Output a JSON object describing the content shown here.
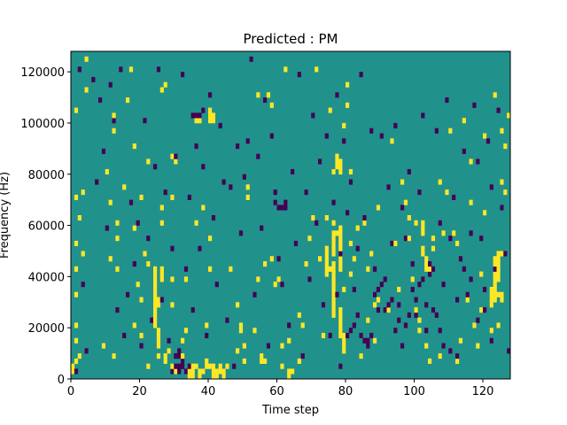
{
  "chart_data": {
    "type": "heatmap",
    "title": "Predicted : PM",
    "xlabel": "Time step",
    "ylabel": "Frequency (Hz)",
    "xlim": [
      0,
      128
    ],
    "ylim": [
      0,
      128000
    ],
    "xticks": [
      0,
      20,
      40,
      60,
      80,
      100,
      120
    ],
    "yticks": [
      0,
      20000,
      40000,
      60000,
      80000,
      100000,
      120000
    ],
    "grid": {
      "cols": 128,
      "rows": 64,
      "cell_hz": 2000
    },
    "colors": {
      "low": "#440154",
      "mid": "#21918c",
      "high": "#fde725"
    },
    "background_value": 0,
    "high_cells": [
      [
        0,
        1
      ],
      [
        0,
        2
      ],
      [
        1,
        3
      ],
      [
        1,
        7
      ],
      [
        1,
        10
      ],
      [
        1,
        16
      ],
      [
        1,
        21
      ],
      [
        1,
        26
      ],
      [
        1,
        35
      ],
      [
        1,
        52
      ],
      [
        2,
        4
      ],
      [
        2,
        31
      ],
      [
        3,
        18
      ],
      [
        3,
        24
      ],
      [
        3,
        36
      ],
      [
        4,
        56
      ],
      [
        4,
        62
      ],
      [
        9,
        6
      ],
      [
        10,
        40
      ],
      [
        11,
        23
      ],
      [
        11,
        34
      ],
      [
        12,
        4
      ],
      [
        12,
        48
      ],
      [
        12,
        51
      ],
      [
        13,
        21
      ],
      [
        13,
        27
      ],
      [
        13,
        30
      ],
      [
        15,
        37
      ],
      [
        16,
        54
      ],
      [
        17,
        60
      ],
      [
        18,
        45
      ],
      [
        18,
        29
      ],
      [
        18,
        10
      ],
      [
        19,
        18
      ],
      [
        20,
        8
      ],
      [
        20,
        15
      ],
      [
        20,
        35
      ],
      [
        21,
        24
      ],
      [
        22,
        2
      ],
      [
        22,
        22
      ],
      [
        22,
        42
      ],
      [
        25,
        4
      ],
      [
        25,
        8
      ],
      [
        26,
        30
      ],
      [
        26,
        33
      ],
      [
        26,
        56
      ],
      [
        27,
        57
      ],
      [
        28,
        5
      ],
      [
        29,
        14
      ],
      [
        29,
        19
      ],
      [
        29,
        35
      ],
      [
        29,
        43
      ],
      [
        30,
        42
      ],
      [
        32,
        4
      ],
      [
        32,
        7
      ],
      [
        33,
        9
      ],
      [
        33,
        19
      ],
      [
        34,
        2
      ],
      [
        35,
        2
      ],
      [
        36,
        2
      ],
      [
        36,
        30
      ],
      [
        36,
        50
      ],
      [
        37,
        50
      ],
      [
        38,
        1
      ],
      [
        38,
        33
      ],
      [
        39,
        2
      ],
      [
        39,
        3
      ],
      [
        39,
        10
      ],
      [
        40,
        2
      ],
      [
        40,
        21
      ],
      [
        40,
        27
      ],
      [
        45,
        2
      ],
      [
        46,
        21
      ],
      [
        48,
        5
      ],
      [
        48,
        14
      ],
      [
        49,
        9
      ],
      [
        49,
        10
      ],
      [
        50,
        3
      ],
      [
        50,
        6
      ],
      [
        51,
        35
      ],
      [
        51,
        37
      ],
      [
        53,
        9
      ],
      [
        54,
        19
      ],
      [
        54,
        55
      ],
      [
        55,
        3
      ],
      [
        55,
        4
      ],
      [
        56,
        3
      ],
      [
        56,
        22
      ],
      [
        57,
        55
      ],
      [
        58,
        23
      ],
      [
        58,
        53
      ],
      [
        59,
        18
      ],
      [
        60,
        19
      ],
      [
        61,
        2
      ],
      [
        61,
        6
      ],
      [
        62,
        60
      ],
      [
        63,
        7
      ],
      [
        66,
        3
      ],
      [
        66,
        12
      ],
      [
        67,
        10
      ],
      [
        68,
        22
      ],
      [
        69,
        27
      ],
      [
        70,
        31
      ],
      [
        71,
        60
      ],
      [
        72,
        23
      ],
      [
        73,
        8
      ],
      [
        74,
        31
      ],
      [
        75,
        21
      ],
      [
        75,
        52
      ],
      [
        76,
        40
      ],
      [
        76,
        28
      ],
      [
        76,
        30
      ],
      [
        77,
        41
      ],
      [
        77,
        42
      ],
      [
        77,
        43
      ],
      [
        78,
        40
      ],
      [
        78,
        41
      ],
      [
        78,
        42
      ],
      [
        79,
        17
      ],
      [
        79,
        49
      ],
      [
        80,
        53
      ],
      [
        80,
        57
      ],
      [
        81,
        20
      ],
      [
        81,
        26
      ],
      [
        81,
        40
      ],
      [
        82,
        23
      ],
      [
        83,
        29
      ],
      [
        84,
        4
      ],
      [
        85,
        30
      ],
      [
        86,
        21
      ],
      [
        86,
        11
      ],
      [
        87,
        24
      ],
      [
        88,
        14
      ],
      [
        88,
        7
      ],
      [
        89,
        33
      ],
      [
        89,
        15
      ],
      [
        92,
        13
      ],
      [
        93,
        46
      ],
      [
        94,
        26
      ],
      [
        95,
        17
      ],
      [
        96,
        38
      ],
      [
        97,
        34
      ],
      [
        98,
        27
      ],
      [
        98,
        31
      ],
      [
        99,
        19
      ],
      [
        99,
        22
      ],
      [
        100,
        13
      ],
      [
        100,
        30
      ],
      [
        101,
        9
      ],
      [
        101,
        11
      ],
      [
        103,
        6
      ],
      [
        104,
        3
      ],
      [
        105,
        25
      ],
      [
        106,
        48
      ],
      [
        107,
        38
      ],
      [
        107,
        4
      ],
      [
        108,
        28
      ],
      [
        109,
        36
      ],
      [
        110,
        48
      ],
      [
        111,
        28
      ],
      [
        112,
        3
      ],
      [
        112,
        26
      ],
      [
        113,
        7
      ],
      [
        114,
        50
      ],
      [
        115,
        15
      ],
      [
        116,
        34
      ],
      [
        116,
        42
      ],
      [
        117,
        10
      ],
      [
        118,
        6
      ],
      [
        119,
        13
      ],
      [
        119,
        20
      ],
      [
        120,
        32
      ],
      [
        120,
        47
      ],
      [
        122,
        9
      ],
      [
        123,
        55
      ],
      [
        124,
        10
      ],
      [
        124,
        16
      ],
      [
        125,
        24
      ],
      [
        125,
        38
      ],
      [
        125,
        48
      ],
      [
        126,
        36
      ],
      [
        126,
        45
      ],
      [
        127,
        51
      ]
    ],
    "high_bands": [
      [
        74,
        20,
        26
      ],
      [
        76,
        12,
        23
      ],
      [
        76,
        24,
        28
      ],
      [
        77,
        28,
        29
      ],
      [
        78,
        21,
        30
      ],
      [
        78,
        8,
        14
      ],
      [
        79,
        5,
        9
      ],
      [
        24,
        10,
        22
      ],
      [
        25,
        6,
        10
      ],
      [
        25,
        14,
        16
      ],
      [
        26,
        19,
        22
      ],
      [
        27,
        3,
        5
      ],
      [
        29,
        1,
        3
      ],
      [
        30,
        1,
        2
      ],
      [
        34,
        0,
        2
      ],
      [
        35,
        0,
        2
      ],
      [
        37,
        0,
        2
      ],
      [
        41,
        0,
        3
      ],
      [
        42,
        0,
        2
      ],
      [
        43,
        1,
        3
      ],
      [
        44,
        0,
        2
      ],
      [
        102,
        28,
        31
      ],
      [
        102,
        24,
        26
      ],
      [
        103,
        21,
        24
      ],
      [
        104,
        21,
        23
      ],
      [
        105,
        27,
        28
      ],
      [
        122,
        14,
        18
      ],
      [
        123,
        15,
        24
      ],
      [
        124,
        19,
        25
      ],
      [
        125,
        15,
        17
      ],
      [
        40,
        50,
        53
      ],
      [
        41,
        50,
        52
      ],
      [
        63,
        0,
        2
      ],
      [
        64,
        1,
        2
      ]
    ],
    "low_cells": [
      [
        1,
        1
      ],
      [
        2,
        60
      ],
      [
        3,
        18
      ],
      [
        4,
        5
      ],
      [
        6,
        58
      ],
      [
        7,
        38
      ],
      [
        8,
        54
      ],
      [
        9,
        44
      ],
      [
        10,
        29
      ],
      [
        11,
        57
      ],
      [
        12,
        50
      ],
      [
        13,
        13
      ],
      [
        14,
        60
      ],
      [
        15,
        8
      ],
      [
        16,
        16
      ],
      [
        17,
        34
      ],
      [
        18,
        22
      ],
      [
        19,
        30
      ],
      [
        20,
        6
      ],
      [
        21,
        50
      ],
      [
        22,
        27
      ],
      [
        23,
        11
      ],
      [
        24,
        41
      ],
      [
        25,
        60
      ],
      [
        26,
        15
      ],
      [
        27,
        36
      ],
      [
        28,
        7
      ],
      [
        29,
        25
      ],
      [
        30,
        43
      ],
      [
        31,
        5
      ],
      [
        32,
        59
      ],
      [
        33,
        21
      ],
      [
        34,
        35
      ],
      [
        35,
        13
      ],
      [
        36,
        45
      ],
      [
        37,
        25
      ],
      [
        38,
        41
      ],
      [
        39,
        8
      ],
      [
        40,
        55
      ],
      [
        41,
        31
      ],
      [
        42,
        18
      ],
      [
        43,
        49
      ],
      [
        44,
        38
      ],
      [
        45,
        11
      ],
      [
        46,
        37
      ],
      [
        47,
        2
      ],
      [
        48,
        45
      ],
      [
        49,
        28
      ],
      [
        50,
        39
      ],
      [
        51,
        46
      ],
      [
        52,
        62
      ],
      [
        53,
        16
      ],
      [
        54,
        43
      ],
      [
        55,
        29
      ],
      [
        56,
        54
      ],
      [
        57,
        6
      ],
      [
        58,
        47
      ],
      [
        59,
        36
      ],
      [
        60,
        23
      ],
      [
        61,
        18
      ],
      [
        62,
        33
      ],
      [
        63,
        10
      ],
      [
        64,
        40
      ],
      [
        65,
        26
      ],
      [
        66,
        59
      ],
      [
        67,
        4
      ],
      [
        68,
        36
      ],
      [
        69,
        19
      ],
      [
        70,
        51
      ],
      [
        71,
        30
      ],
      [
        72,
        42
      ],
      [
        73,
        14
      ],
      [
        74,
        47
      ],
      [
        75,
        8
      ],
      [
        76,
        34
      ],
      [
        77,
        55
      ],
      [
        78,
        2
      ],
      [
        79,
        46
      ],
      [
        80,
        32
      ],
      [
        81,
        38
      ],
      [
        82,
        17
      ],
      [
        83,
        25
      ],
      [
        84,
        59
      ],
      [
        85,
        31
      ],
      [
        86,
        7
      ],
      [
        87,
        48
      ],
      [
        88,
        21
      ],
      [
        89,
        13
      ],
      [
        90,
        47
      ],
      [
        91,
        19
      ],
      [
        92,
        37
      ],
      [
        93,
        26
      ],
      [
        94,
        49
      ],
      [
        95,
        14
      ],
      [
        96,
        33
      ],
      [
        97,
        27
      ],
      [
        98,
        40
      ],
      [
        99,
        22
      ],
      [
        100,
        12
      ],
      [
        101,
        36
      ],
      [
        102,
        51
      ],
      [
        103,
        9
      ],
      [
        104,
        22
      ],
      [
        105,
        13
      ],
      [
        106,
        48
      ],
      [
        107,
        30
      ],
      [
        108,
        18
      ],
      [
        109,
        54
      ],
      [
        110,
        27
      ],
      [
        111,
        35
      ],
      [
        112,
        4
      ],
      [
        113,
        23
      ],
      [
        114,
        44
      ],
      [
        115,
        16
      ],
      [
        116,
        28
      ],
      [
        117,
        53
      ],
      [
        118,
        42
      ],
      [
        119,
        27
      ],
      [
        120,
        17
      ],
      [
        121,
        46
      ],
      [
        122,
        37
      ],
      [
        123,
        21
      ],
      [
        124,
        52
      ],
      [
        125,
        33
      ],
      [
        126,
        24
      ],
      [
        127,
        5
      ],
      [
        29,
        1
      ],
      [
        30,
        2
      ],
      [
        31,
        1
      ],
      [
        31,
        2
      ],
      [
        32,
        2
      ],
      [
        33,
        1
      ],
      [
        34,
        2
      ],
      [
        32,
        3
      ],
      [
        30,
        4
      ],
      [
        31,
        4
      ],
      [
        35,
        51
      ],
      [
        36,
        51
      ],
      [
        37,
        51
      ],
      [
        38,
        52
      ],
      [
        59,
        34
      ],
      [
        60,
        33
      ],
      [
        61,
        33
      ],
      [
        62,
        34
      ],
      [
        77,
        16
      ],
      [
        78,
        24
      ],
      [
        80,
        8
      ],
      [
        81,
        9
      ],
      [
        82,
        10
      ],
      [
        83,
        12
      ],
      [
        84,
        8
      ],
      [
        85,
        7
      ],
      [
        86,
        6
      ],
      [
        87,
        8
      ],
      [
        88,
        16
      ],
      [
        89,
        17
      ],
      [
        90,
        18
      ],
      [
        91,
        13
      ],
      [
        92,
        14
      ],
      [
        93,
        15
      ],
      [
        94,
        9
      ],
      [
        95,
        11
      ],
      [
        96,
        6
      ],
      [
        97,
        10
      ],
      [
        98,
        12
      ],
      [
        99,
        17
      ],
      [
        100,
        15
      ],
      [
        101,
        18
      ],
      [
        102,
        19
      ],
      [
        103,
        14
      ],
      [
        104,
        20
      ],
      [
        105,
        21
      ],
      [
        106,
        12
      ],
      [
        107,
        9
      ],
      [
        108,
        6
      ],
      [
        110,
        5
      ],
      [
        112,
        15
      ],
      [
        114,
        21
      ],
      [
        116,
        19
      ],
      [
        118,
        11
      ],
      [
        120,
        13
      ],
      [
        122,
        7
      ]
    ]
  }
}
